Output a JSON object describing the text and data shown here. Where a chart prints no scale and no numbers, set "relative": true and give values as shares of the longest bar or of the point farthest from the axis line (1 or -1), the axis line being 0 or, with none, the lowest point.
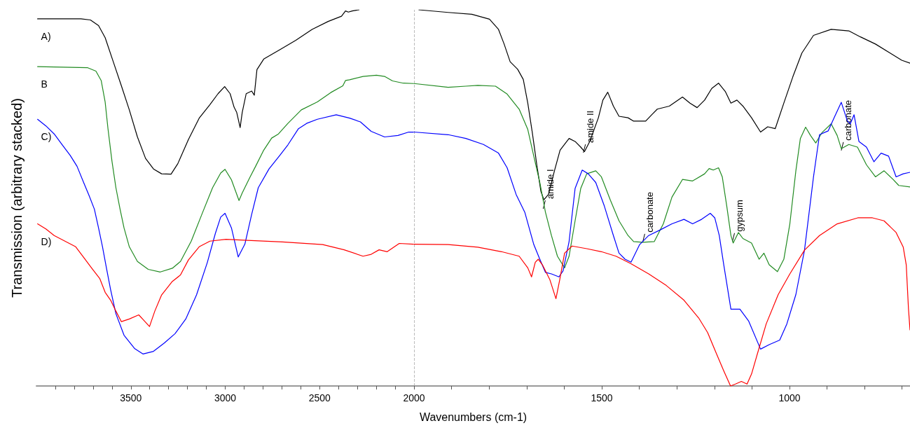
{
  "chart_data": [
    {
      "type": "line",
      "relative": true,
      "ylabel": "Transmission (arbitrary stacked)",
      "tick_labels": "x",
      "xlim": [
        4000,
        2000
      ],
      "ref_lines": [
        {
          "axis": "x",
          "value": 2000,
          "color": "#bbbbbb",
          "line_style": "dashed"
        }
      ],
      "xticks": [
        {
          "value": 3900,
          "label": null
        },
        {
          "value": 3800,
          "label": null
        },
        {
          "value": 3700,
          "label": null
        },
        {
          "value": 3600,
          "label": null
        },
        3500,
        {
          "value": 3400,
          "label": null
        },
        {
          "value": 3300,
          "label": null
        },
        {
          "value": 3200,
          "label": null
        },
        {
          "value": 3100,
          "label": null
        },
        3000,
        {
          "value": 2900,
          "label": null
        },
        {
          "value": 2800,
          "label": null
        },
        {
          "value": 2700,
          "label": null
        },
        {
          "value": 2600,
          "label": null
        },
        2500,
        {
          "value": 2400,
          "label": null
        },
        {
          "value": 2300,
          "label": null
        },
        {
          "value": 2200,
          "label": null
        },
        {
          "value": 2100,
          "label": null
        }
      ],
      "series": [
        {
          "name": "A)",
          "color": "#000000",
          "x": [
            3994,
            3764,
            3714,
            3671,
            3636,
            3593,
            3550,
            3508,
            3465,
            3422,
            3380,
            3337,
            3287,
            3251,
            3195,
            3138,
            3081,
            3038,
            3003,
            2974,
            2953,
            2939,
            2921,
            2910,
            2889,
            2860,
            2846,
            2832,
            2796,
            2711,
            2626,
            2540,
            2455,
            2384,
            2363,
            2348,
            2327,
            2291
          ],
          "values": [
            0.976,
            0.976,
            0.973,
            0.958,
            0.926,
            0.862,
            0.798,
            0.734,
            0.662,
            0.605,
            0.577,
            0.564,
            0.563,
            0.591,
            0.655,
            0.712,
            0.748,
            0.777,
            0.796,
            0.777,
            0.741,
            0.727,
            0.687,
            0.727,
            0.777,
            0.784,
            0.773,
            0.841,
            0.869,
            0.894,
            0.919,
            0.948,
            0.969,
            0.983,
            0.997,
            0.994,
            0.997,
            1
          ]
        },
        {
          "name": "B",
          "color": "#228b22",
          "x": [
            3994,
            3906,
            3728,
            3685,
            3657,
            3636,
            3621,
            3600,
            3579,
            3557,
            3536,
            3508,
            3465,
            3408,
            3344,
            3280,
            3237,
            3180,
            3124,
            3067,
            3024,
            3001,
            2967,
            2927,
            2910,
            2868,
            2839,
            2796,
            2754,
            2718,
            2668,
            2597,
            2512,
            2441,
            2377,
            2363,
            2341,
            2270,
            2199,
            2156,
            2114,
            2057,
            2003
          ],
          "values": [
            0.849,
            0.848,
            0.846,
            0.837,
            0.812,
            0.755,
            0.684,
            0.598,
            0.527,
            0.47,
            0.42,
            0.37,
            0.331,
            0.31,
            0.303,
            0.313,
            0.331,
            0.385,
            0.456,
            0.527,
            0.566,
            0.576,
            0.548,
            0.493,
            0.513,
            0.556,
            0.584,
            0.627,
            0.659,
            0.67,
            0.698,
            0.734,
            0.755,
            0.78,
            0.798,
            0.812,
            0.814,
            0.823,
            0.826,
            0.823,
            0.811,
            0.805,
            0.804
          ]
        },
        {
          "name": "C)",
          "color": "#0000ff",
          "x": [
            3994,
            3949,
            3906,
            3863,
            3821,
            3785,
            3750,
            3721,
            3693,
            3671,
            3650,
            3629,
            3607,
            3579,
            3536,
            3479,
            3436,
            3380,
            3323,
            3266,
            3209,
            3152,
            3095,
            3052,
            3024,
            3001,
            2967,
            2931,
            2896,
            2860,
            2825,
            2768,
            2711,
            2668,
            2612,
            2569,
            2512,
            2412,
            2341,
            2284,
            2227,
            2156,
            2085,
            2028,
            2003
          ],
          "values": [
            0.709,
            0.691,
            0.67,
            0.641,
            0.613,
            0.584,
            0.541,
            0.506,
            0.47,
            0.42,
            0.37,
            0.313,
            0.256,
            0.192,
            0.135,
            0.099,
            0.085,
            0.092,
            0.114,
            0.139,
            0.178,
            0.242,
            0.328,
            0.406,
            0.449,
            0.459,
            0.42,
            0.343,
            0.377,
            0.456,
            0.527,
            0.577,
            0.613,
            0.641,
            0.684,
            0.698,
            0.709,
            0.721,
            0.712,
            0.702,
            0.677,
            0.662,
            0.666,
            0.675,
            0.675
          ]
        },
        {
          "name": "D)",
          "color": "#ff0000",
          "x": [
            3994,
            3949,
            3906,
            3849,
            3792,
            3750,
            3707,
            3664,
            3636,
            3607,
            3579,
            3550,
            3508,
            3458,
            3430,
            3401,
            3373,
            3337,
            3280,
            3237,
            3195,
            3138,
            3081,
            2996,
            2882,
            2697,
            2484,
            2370,
            2270,
            2227,
            2185,
            2142,
            2078,
            2003
          ],
          "values": [
            0.431,
            0.417,
            0.4,
            0.385,
            0.37,
            0.342,
            0.313,
            0.285,
            0.249,
            0.228,
            0.199,
            0.171,
            0.178,
            0.189,
            0.174,
            0.158,
            0.199,
            0.242,
            0.278,
            0.295,
            0.335,
            0.37,
            0.385,
            0.39,
            0.387,
            0.383,
            0.376,
            0.362,
            0.345,
            0.35,
            0.362,
            0.357,
            0.379,
            0.377
          ]
        }
      ]
    },
    {
      "type": "line",
      "relative": true,
      "xlabel": "Wavenumbers (cm-1)",
      "tick_labels": "x",
      "xlim": [
        2000,
        679
      ],
      "xticks": [
        2000,
        {
          "value": 1900,
          "label": null
        },
        {
          "value": 1800,
          "label": null
        },
        {
          "value": 1700,
          "label": null
        },
        {
          "value": 1600,
          "label": null
        },
        1500,
        {
          "value": 1400,
          "label": null
        },
        {
          "value": 1300,
          "label": null
        },
        {
          "value": 1200,
          "label": null
        },
        {
          "value": 1100,
          "label": null
        },
        1000,
        {
          "value": 900,
          "label": null
        },
        {
          "value": 800,
          "label": null
        },
        {
          "value": 700,
          "label": null
        }
      ],
      "annotations": [
        {
          "text": "amide I",
          "x": 1656,
          "y": 0.471
        },
        {
          "text": "amide II",
          "x": 1549,
          "y": 0.62
        },
        {
          "text": "carbonate",
          "x": 1391,
          "y": 0.382
        },
        {
          "text": "gypsum",
          "x": 1152,
          "y": 0.384
        },
        {
          "text": "carbonate",
          "x": 862,
          "y": 0.626
        }
      ],
      "series": [
        {
          "color": "#000000",
          "x": [
            1987,
            1909,
            1846,
            1799,
            1775,
            1760,
            1744,
            1724,
            1709,
            1697,
            1685,
            1673,
            1662,
            1654,
            1642,
            1626,
            1611,
            1587,
            1571,
            1556,
            1546,
            1532,
            1509,
            1497,
            1484,
            1469,
            1454,
            1430,
            1415,
            1383,
            1367,
            1352,
            1320,
            1285,
            1265,
            1246,
            1226,
            1207,
            1189,
            1171,
            1156,
            1140,
            1124,
            1101,
            1077,
            1058,
            1038,
            1015,
            991,
            967,
            936,
            889,
            842,
            811,
            771,
            732,
            701,
            679
          ],
          "values": [
            1,
            0.993,
            0.988,
            0.975,
            0.948,
            0.909,
            0.862,
            0.842,
            0.815,
            0.752,
            0.674,
            0.588,
            0.517,
            0.495,
            0.509,
            0.572,
            0.627,
            0.658,
            0.65,
            0.635,
            0.623,
            0.65,
            0.713,
            0.76,
            0.781,
            0.744,
            0.717,
            0.713,
            0.704,
            0.704,
            0.721,
            0.736,
            0.744,
            0.768,
            0.752,
            0.74,
            0.76,
            0.791,
            0.805,
            0.783,
            0.752,
            0.76,
            0.744,
            0.713,
            0.675,
            0.689,
            0.684,
            0.752,
            0.822,
            0.885,
            0.932,
            0.948,
            0.944,
            0.928,
            0.909,
            0.885,
            0.866,
            0.858
          ]
        },
        {
          "color": "#228b22",
          "x": [
            2000,
            1909,
            1862,
            1830,
            1783,
            1752,
            1720,
            1697,
            1681,
            1665,
            1650,
            1634,
            1618,
            1599,
            1587,
            1571,
            1556,
            1540,
            1516,
            1501,
            1477,
            1454,
            1430,
            1415,
            1391,
            1360,
            1336,
            1313,
            1285,
            1258,
            1226,
            1214,
            1203,
            1189,
            1179,
            1167,
            1156,
            1150,
            1136,
            1124,
            1101,
            1081,
            1068,
            1054,
            1032,
            1015,
            999,
            983,
            971,
            957,
            944,
            930,
            913,
            889,
            873,
            862,
            842,
            819,
            795,
            771,
            748,
            724,
            709,
            679
          ],
          "values": [
            0.804,
            0.794,
            0.797,
            0.799,
            0.797,
            0.776,
            0.736,
            0.682,
            0.611,
            0.541,
            0.462,
            0.4,
            0.345,
            0.314,
            0.345,
            0.439,
            0.525,
            0.564,
            0.572,
            0.556,
            0.494,
            0.439,
            0.4,
            0.384,
            0.382,
            0.384,
            0.431,
            0.502,
            0.549,
            0.545,
            0.564,
            0.578,
            0.574,
            0.58,
            0.556,
            0.478,
            0.4,
            0.38,
            0.408,
            0.392,
            0.38,
            0.337,
            0.353,
            0.322,
            0.304,
            0.337,
            0.431,
            0.572,
            0.658,
            0.688,
            0.666,
            0.646,
            0.674,
            0.697,
            0.666,
            0.631,
            0.642,
            0.635,
            0.588,
            0.556,
            0.572,
            0.549,
            0.533,
            0.529
          ]
        },
        {
          "color": "#0000ff",
          "x": [
            2000,
            1909,
            1862,
            1815,
            1775,
            1752,
            1728,
            1705,
            1681,
            1665,
            1650,
            1634,
            1614,
            1603,
            1587,
            1571,
            1552,
            1536,
            1516,
            1493,
            1469,
            1454,
            1438,
            1422,
            1399,
            1375,
            1344,
            1313,
            1281,
            1258,
            1234,
            1211,
            1199,
            1187,
            1175,
            1156,
            1132,
            1109,
            1077,
            1054,
            1026,
            1007,
            983,
            960,
            936,
            920,
            897,
            881,
            862,
            846,
            838,
            828,
            815,
            795,
            775,
            756,
            736,
            716,
            697,
            679
          ],
          "values": [
            0.675,
            0.668,
            0.658,
            0.642,
            0.619,
            0.58,
            0.509,
            0.462,
            0.376,
            0.337,
            0.302,
            0.298,
            0.29,
            0.306,
            0.384,
            0.525,
            0.574,
            0.564,
            0.541,
            0.478,
            0.4,
            0.353,
            0.337,
            0.329,
            0.376,
            0.4,
            0.415,
            0.431,
            0.443,
            0.431,
            0.443,
            0.459,
            0.447,
            0.4,
            0.322,
            0.204,
            0.204,
            0.173,
            0.098,
            0.11,
            0.122,
            0.165,
            0.243,
            0.361,
            0.556,
            0.668,
            0.678,
            0.713,
            0.754,
            0.705,
            0.697,
            0.721,
            0.65,
            0.635,
            0.596,
            0.619,
            0.611,
            0.556,
            0.564,
            0.568
          ]
        },
        {
          "color": "#ff0000",
          "x": [
            2000,
            1909,
            1830,
            1767,
            1720,
            1697,
            1687,
            1677,
            1669,
            1658,
            1638,
            1622,
            1612,
            1599,
            1579,
            1540,
            1501,
            1462,
            1422,
            1375,
            1328,
            1281,
            1242,
            1218,
            1195,
            1175,
            1157,
            1144,
            1128,
            1113,
            1101,
            1085,
            1062,
            1030,
            999,
            960,
            920,
            873,
            818,
            779,
            748,
            716,
            697,
            689,
            683,
            679
          ],
          "values": [
            0.377,
            0.376,
            0.369,
            0.357,
            0.345,
            0.314,
            0.29,
            0.329,
            0.337,
            0.322,
            0.282,
            0.232,
            0.282,
            0.353,
            0.372,
            0.365,
            0.357,
            0.345,
            0.325,
            0.298,
            0.267,
            0.228,
            0.181,
            0.142,
            0.087,
            0.04,
            0,
            0.005,
            0.012,
            0.005,
            0.032,
            0.087,
            0.165,
            0.243,
            0.298,
            0.361,
            0.4,
            0.431,
            0.447,
            0.447,
            0.439,
            0.408,
            0.369,
            0.322,
            0.204,
            0.149
          ]
        }
      ]
    }
  ]
}
